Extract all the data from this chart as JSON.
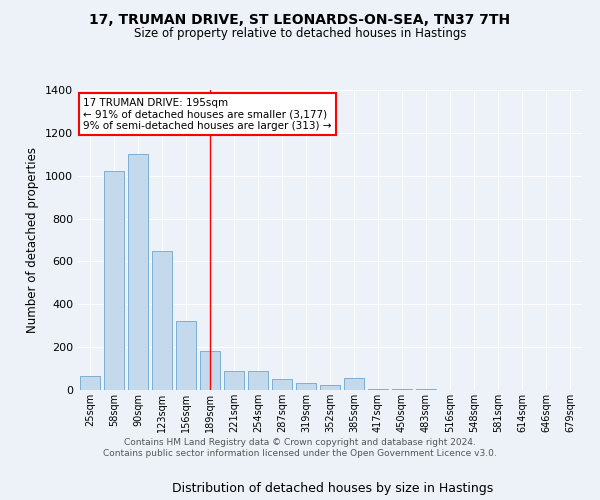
{
  "title1": "17, TRUMAN DRIVE, ST LEONARDS-ON-SEA, TN37 7TH",
  "title2": "Size of property relative to detached houses in Hastings",
  "xlabel": "Distribution of detached houses by size in Hastings",
  "ylabel": "Number of detached properties",
  "categories": [
    "25sqm",
    "58sqm",
    "90sqm",
    "123sqm",
    "156sqm",
    "189sqm",
    "221sqm",
    "254sqm",
    "287sqm",
    "319sqm",
    "352sqm",
    "385sqm",
    "417sqm",
    "450sqm",
    "483sqm",
    "516sqm",
    "548sqm",
    "581sqm",
    "614sqm",
    "646sqm",
    "679sqm"
  ],
  "values": [
    65,
    1020,
    1100,
    650,
    320,
    180,
    90,
    90,
    50,
    35,
    25,
    55,
    5,
    5,
    3,
    2,
    2,
    1,
    1,
    1,
    1
  ],
  "bar_color": "#c5d9ec",
  "bar_edge_color": "#7aafd4",
  "background_color": "#edf2f8",
  "grid_color": "#ffffff",
  "vline_x": 5,
  "vline_color": "red",
  "annotation_text": "17 TRUMAN DRIVE: 195sqm\n← 91% of detached houses are smaller (3,177)\n9% of semi-detached houses are larger (313) →",
  "annotation_box_color": "white",
  "annotation_box_edge": "red",
  "ylim": [
    0,
    1400
  ],
  "yticks": [
    0,
    200,
    400,
    600,
    800,
    1000,
    1200,
    1400
  ],
  "footer": "Contains HM Land Registry data © Crown copyright and database right 2024.\nContains public sector information licensed under the Open Government Licence v3.0."
}
